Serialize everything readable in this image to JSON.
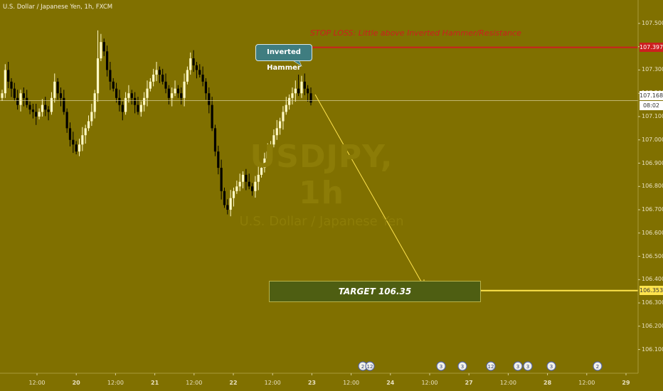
{
  "chart_data": {
    "type": "candlestick",
    "title": "U.S. Dollar / Japanese Yen, 1h, FXCM",
    "watermark": {
      "symbol": "USDJPY, 1h",
      "description": "U.S. Dollar / Japanese Yen"
    },
    "price_axis": {
      "range": [
        106.05,
        107.57
      ],
      "ticks": [
        "107.500",
        "107.400",
        "107.300",
        "107.200",
        "107.100",
        "107.000",
        "106.900",
        "106.800",
        "106.700",
        "106.600",
        "106.500",
        "106.400",
        "106.300",
        "106.200",
        "106.100"
      ],
      "labels": [
        "107.500",
        "107.300",
        "107.200",
        "107.100",
        "107.000",
        "106.900",
        "106.800",
        "106.700",
        "106.600",
        "106.500",
        "106.400",
        "106.300",
        "106.200",
        "106.100"
      ]
    },
    "time_axis": {
      "labels": [
        {
          "text": "12:00",
          "bold": false
        },
        {
          "text": "20",
          "bold": true
        },
        {
          "text": "12:00",
          "bold": false
        },
        {
          "text": "21",
          "bold": true
        },
        {
          "text": "12:00",
          "bold": false
        },
        {
          "text": "22",
          "bold": true
        },
        {
          "text": "12:00",
          "bold": false
        },
        {
          "text": "23",
          "bold": true
        },
        {
          "text": "12:00",
          "bold": false
        },
        {
          "text": "24",
          "bold": true
        },
        {
          "text": "12:00",
          "bold": false
        },
        {
          "text": "27",
          "bold": true
        },
        {
          "text": "12:00",
          "bold": false
        },
        {
          "text": "28",
          "bold": true
        },
        {
          "text": "12:00",
          "bold": false
        },
        {
          "text": "29",
          "bold": true
        }
      ]
    },
    "current_price": {
      "value": "107.168",
      "countdown": "08:02"
    },
    "stop_loss": {
      "value": "107.397",
      "label": "STOP LOSS: Little above Inverted Hammer/Resistance"
    },
    "target": {
      "value": "106.353",
      "label": "TARGET 106.35"
    },
    "annotation": {
      "label": "Inverted Hammer"
    },
    "candles_close": [
      107.2,
      107.3,
      107.25,
      107.22,
      107.18,
      107.15,
      107.2,
      107.18,
      107.15,
      107.13,
      107.12,
      107.1,
      107.12,
      107.15,
      107.13,
      107.12,
      107.18,
      107.25,
      107.2,
      107.18,
      107.12,
      107.05,
      107.0,
      106.98,
      106.95,
      106.98,
      107.02,
      107.05,
      107.08,
      107.12,
      107.2,
      107.35,
      107.42,
      107.38,
      107.3,
      107.25,
      107.22,
      107.18,
      107.15,
      107.12,
      107.18,
      107.2,
      107.18,
      107.15,
      107.12,
      107.15,
      107.18,
      107.22,
      107.25,
      107.28,
      107.3,
      107.28,
      107.25,
      107.22,
      107.18,
      107.2,
      107.22,
      107.2,
      107.18,
      107.25,
      107.3,
      107.35,
      107.32,
      107.3,
      107.28,
      107.25,
      107.2,
      107.15,
      107.05,
      106.95,
      106.88,
      106.78,
      106.72,
      106.7,
      106.75,
      106.78,
      106.8,
      106.82,
      106.85,
      106.82,
      106.8,
      106.78,
      106.82,
      106.85,
      106.88,
      106.92,
      106.95,
      106.98,
      107.02,
      107.05,
      107.08,
      107.12,
      107.15,
      107.18,
      107.2,
      107.22,
      107.2,
      107.25,
      107.22,
      107.2,
      107.16
    ],
    "events": [
      "2",
      "12",
      "3",
      "3",
      "12",
      "3",
      "3",
      "3",
      "2"
    ],
    "colors": {
      "background": "#807000",
      "up_candle": "#fff9c4",
      "down_candle": "#000000",
      "stop_loss": "#cc1f1f",
      "target_line": "#ffe44d",
      "callout": "#3f7d80",
      "projection": "#ffe44d"
    }
  }
}
